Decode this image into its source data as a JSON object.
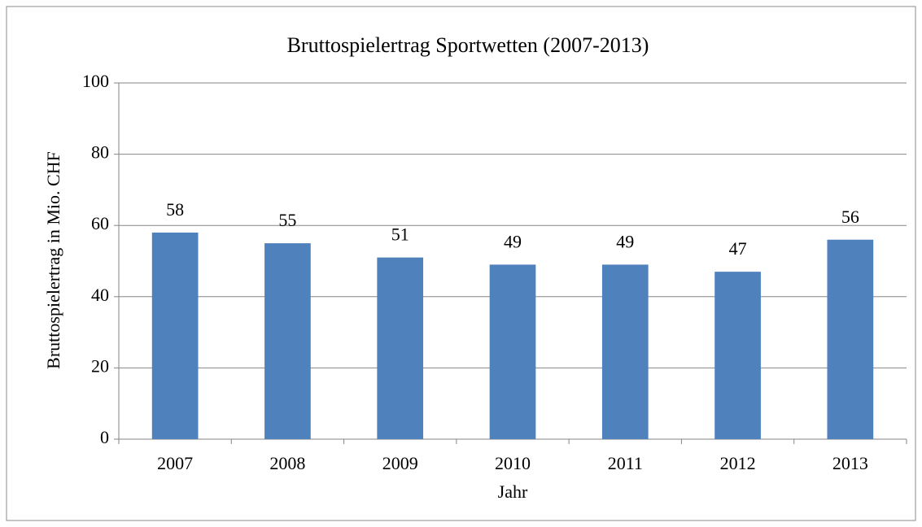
{
  "chart_data": {
    "type": "bar",
    "title": "Bruttospielertrag Sportwetten (2007-2013)",
    "x_label": "Jahr",
    "y_label": "Bruttospielertrag in Mio. CHF",
    "categories": [
      "2007",
      "2008",
      "2009",
      "2010",
      "2011",
      "2012",
      "2013"
    ],
    "values": [
      58,
      55,
      51,
      49,
      49,
      47,
      56
    ],
    "color": "#4f81bd",
    "ylim": [
      0,
      100
    ],
    "yticks": [
      0,
      20,
      40,
      60,
      80,
      100
    ],
    "grid": true
  }
}
